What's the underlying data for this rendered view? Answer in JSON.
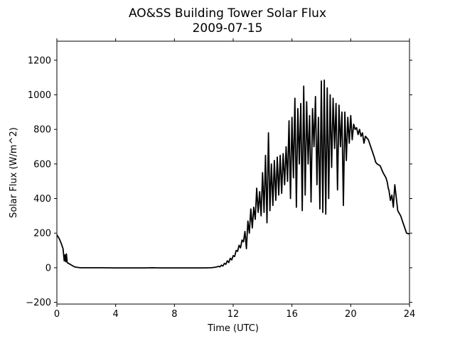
{
  "chart_data": {
    "type": "line",
    "title": "AO&SS Building Tower Solar Flux",
    "subtitle": "2009-07-15",
    "xlabel": "Time (UTC)",
    "ylabel": "Solar Flux (W/m^2)",
    "xlim": [
      0,
      24
    ],
    "ylim": [
      -210,
      1310
    ],
    "x_ticks": [
      0,
      4,
      8,
      12,
      16,
      20,
      24
    ],
    "y_ticks": [
      -200,
      0,
      200,
      400,
      600,
      800,
      1000,
      1200
    ],
    "grid": false,
    "legend": "none",
    "line_color": "#000000",
    "series": [
      {
        "x": [
          0,
          0.15,
          0.3,
          0.42,
          0.5,
          0.55,
          0.6,
          0.65,
          0.7,
          0.8,
          1.0,
          1.2,
          1.4,
          1.6,
          2.0,
          3.0,
          4.0,
          6.0,
          6.5,
          7.0,
          8.0,
          9.0,
          10.0,
          10.5,
          10.8,
          11.0,
          11.1,
          11.2,
          11.3,
          11.4,
          11.5,
          11.6,
          11.7,
          11.8,
          11.9,
          12.0,
          12.1,
          12.2,
          12.3,
          12.4,
          12.5,
          12.6,
          12.7,
          12.8,
          12.9,
          13.0,
          13.1,
          13.2,
          13.3,
          13.4,
          13.5,
          13.6,
          13.7,
          13.8,
          13.9,
          14.0,
          14.1,
          14.2,
          14.3,
          14.4,
          14.5,
          14.6,
          14.7,
          14.8,
          14.9,
          15.0,
          15.1,
          15.2,
          15.3,
          15.4,
          15.5,
          15.6,
          15.7,
          15.8,
          15.9,
          16.0,
          16.1,
          16.2,
          16.3,
          16.4,
          16.5,
          16.6,
          16.7,
          16.8,
          16.9,
          17.0,
          17.1,
          17.2,
          17.3,
          17.4,
          17.5,
          17.6,
          17.7,
          17.8,
          17.9,
          18.0,
          18.1,
          18.2,
          18.3,
          18.4,
          18.5,
          18.6,
          18.7,
          18.8,
          18.9,
          19.0,
          19.1,
          19.2,
          19.3,
          19.4,
          19.5,
          19.6,
          19.7,
          19.8,
          19.9,
          20.0,
          20.1,
          20.2,
          20.3,
          20.4,
          20.5,
          20.6,
          20.7,
          20.8,
          20.9,
          21.0,
          21.2,
          21.4,
          21.6,
          21.7,
          21.8,
          22.0,
          22.2,
          22.4,
          22.5,
          22.55,
          22.6,
          22.7,
          22.8,
          22.9,
          23.0,
          23.2,
          23.4,
          23.6,
          23.8,
          24.0
        ],
        "y": [
          190,
          170,
          140,
          110,
          40,
          75,
          35,
          80,
          30,
          25,
          15,
          5,
          2,
          0,
          0,
          0,
          -1,
          -1,
          0,
          -1,
          -1,
          -1,
          -1,
          0,
          3,
          8,
          5,
          15,
          10,
          25,
          20,
          40,
          30,
          55,
          45,
          70,
          65,
          100,
          95,
          130,
          115,
          160,
          150,
          210,
          110,
          270,
          200,
          340,
          230,
          350,
          280,
          460,
          320,
          440,
          300,
          550,
          320,
          650,
          260,
          780,
          330,
          600,
          360,
          620,
          390,
          640,
          420,
          650,
          430,
          660,
          480,
          700,
          500,
          850,
          400,
          870,
          520,
          980,
          350,
          920,
          600,
          950,
          330,
          1050,
          420,
          960,
          600,
          880,
          380,
          920,
          700,
          990,
          480,
          870,
          340,
          1080,
          320,
          1085,
          310,
          1040,
          400,
          1000,
          580,
          980,
          690,
          950,
          450,
          940,
          700,
          900,
          360,
          900,
          620,
          870,
          720,
          880,
          740,
          830,
          800,
          810,
          770,
          800,
          760,
          780,
          720,
          760,
          740,
          690,
          640,
          610,
          600,
          590,
          550,
          520,
          490,
          460,
          450,
          390,
          420,
          350,
          480,
          330,
          300,
          250,
          200,
          195
        ]
      }
    ]
  }
}
